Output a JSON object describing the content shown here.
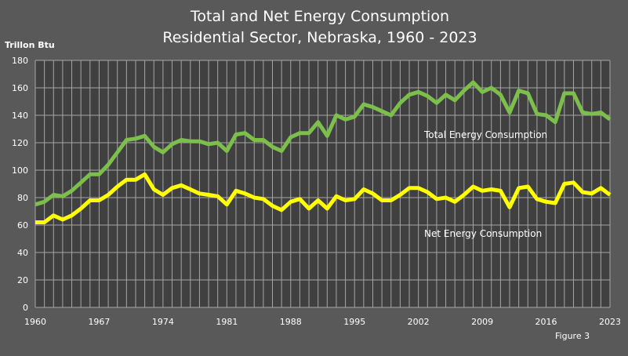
{
  "chart_data": {
    "type": "line",
    "title": "Total and Net Energy Consumption",
    "subtitle": "Residential Sector, Nebraska, 1960 - 2023",
    "ylabel": "Trillon Btu",
    "xlabel": "",
    "footnote": "Figure 3",
    "ylim": [
      0,
      180
    ],
    "xlim": [
      1960,
      2023
    ],
    "yticks": [
      "0",
      "20",
      "40",
      "60",
      "80",
      "100",
      "120",
      "140",
      "160",
      "180"
    ],
    "xticks": [
      "1960",
      "1967",
      "1974",
      "1981",
      "1988",
      "1995",
      "2002",
      "2009",
      "2016",
      "2023"
    ],
    "grid": true,
    "x_start": 1960,
    "series": [
      {
        "name": "Total Energy Consumption",
        "color": "#7cc04b",
        "values": [
          75,
          77,
          82,
          81,
          85,
          91,
          97,
          97,
          104,
          113,
          122,
          123,
          125,
          117,
          113,
          119,
          122,
          121,
          121,
          119,
          120,
          114,
          126,
          127,
          122,
          122,
          117,
          114,
          124,
          127,
          127,
          135,
          125,
          140,
          137,
          139,
          148,
          146,
          143,
          140,
          149,
          155,
          157,
          154,
          149,
          155,
          151,
          158,
          164,
          157,
          160,
          155,
          142,
          158,
          156,
          141,
          140,
          135,
          156,
          156,
          142,
          141,
          142,
          137
        ]
      },
      {
        "name": "Net Energy Consumption",
        "color": "#ffff00",
        "values": [
          62,
          62,
          67,
          64,
          67,
          72,
          78,
          78,
          82,
          88,
          93,
          93,
          97,
          86,
          82,
          87,
          89,
          86,
          83,
          82,
          81,
          75,
          85,
          83,
          80,
          79,
          74,
          71,
          77,
          79,
          72,
          78,
          72,
          81,
          78,
          79,
          86,
          83,
          78,
          78,
          82,
          87,
          87,
          84,
          79,
          80,
          77,
          82,
          88,
          85,
          86,
          85,
          73,
          87,
          88,
          79,
          77,
          76,
          90,
          91,
          84,
          83,
          87,
          82
        ]
      }
    ]
  }
}
